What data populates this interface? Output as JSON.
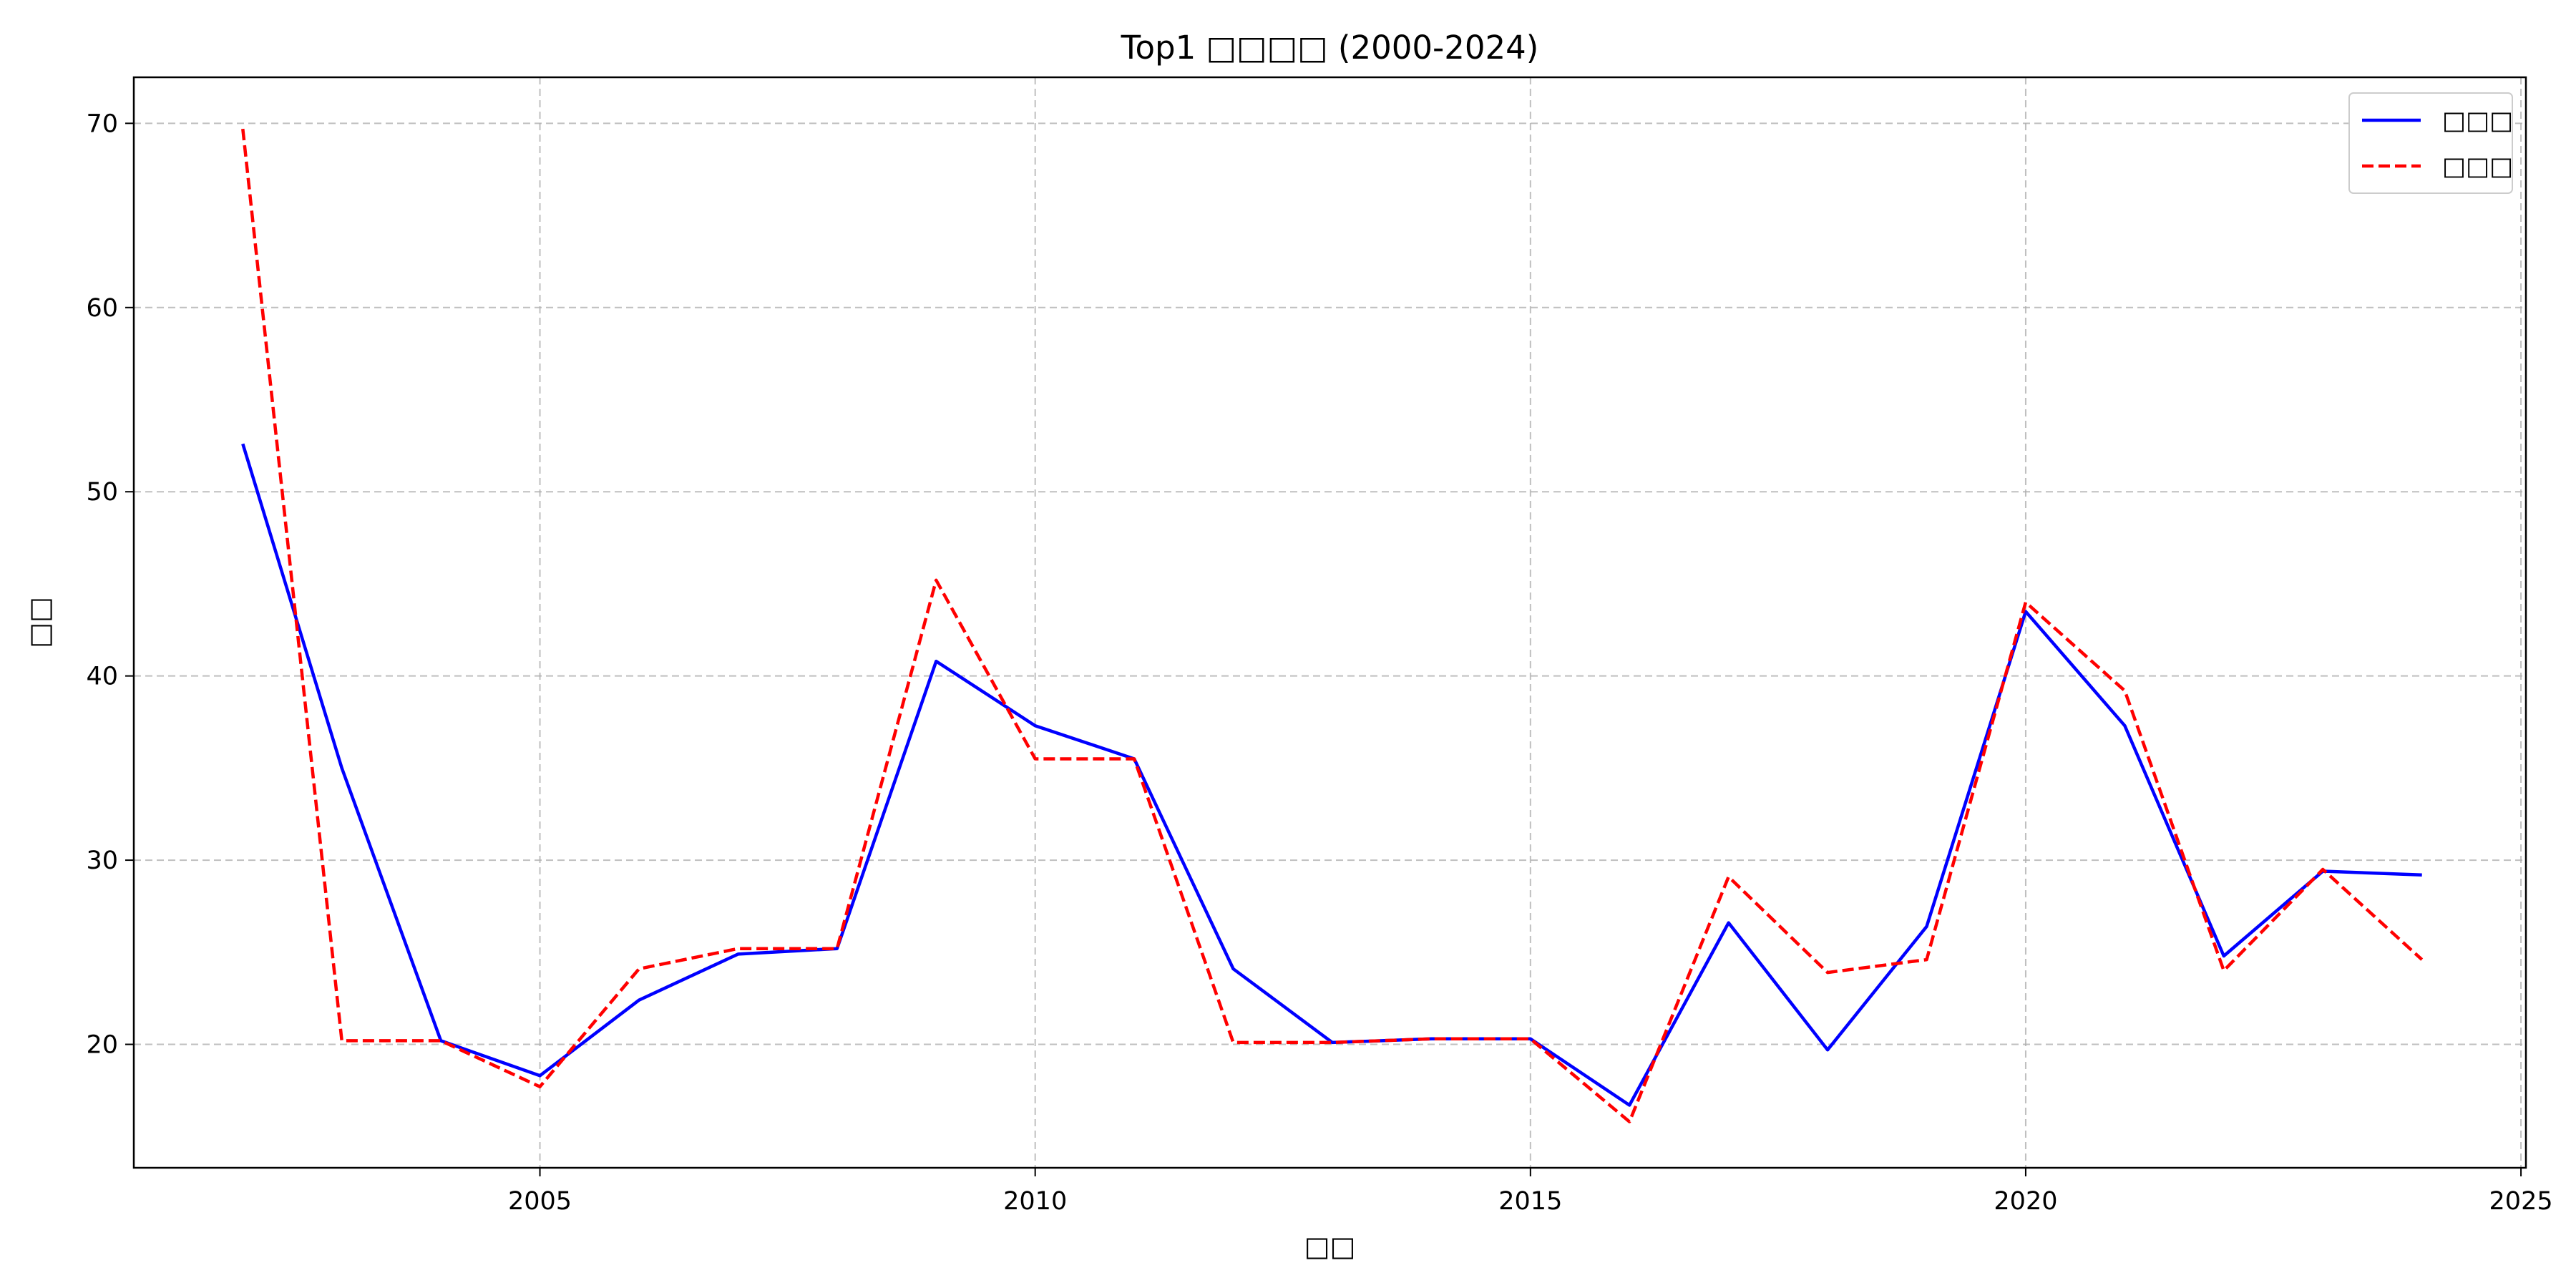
{
  "chart_data": {
    "type": "line",
    "title": "Top1 □□□□ (2000-2024)",
    "xlabel": "□□",
    "ylabel": "□□",
    "xlim": [
      2000.9,
      2025.05
    ],
    "ylim": [
      13.3,
      72.5
    ],
    "xticks": [
      2005,
      2010,
      2015,
      2020,
      2025
    ],
    "yticks": [
      20,
      30,
      40,
      50,
      60,
      70
    ],
    "grid": true,
    "legend_position": "top-right",
    "x": [
      2002,
      2003,
      2004,
      2005,
      2006,
      2007,
      2008,
      2009,
      2010,
      2011,
      2012,
      2013,
      2014,
      2015,
      2016,
      2017,
      2018,
      2019,
      2020,
      2021,
      2022,
      2023,
      2024
    ],
    "series": [
      {
        "name": "□□□",
        "color": "#0000ff",
        "style": "solid",
        "values": [
          52.6,
          35.0,
          20.2,
          18.3,
          22.4,
          24.9,
          25.2,
          40.8,
          37.3,
          35.5,
          24.1,
          20.1,
          20.3,
          20.3,
          16.7,
          26.6,
          19.7,
          26.4,
          43.5,
          37.3,
          24.8,
          29.4,
          29.2
        ]
      },
      {
        "name": "□□□",
        "color": "#ff0000",
        "style": "dashed",
        "values": [
          69.7,
          20.2,
          20.2,
          17.7,
          24.1,
          25.2,
          25.2,
          45.2,
          35.5,
          35.5,
          20.1,
          20.1,
          20.3,
          20.3,
          15.8,
          29.1,
          23.9,
          24.6,
          44.0,
          39.2,
          24.0,
          29.5,
          24.6
        ]
      }
    ]
  }
}
